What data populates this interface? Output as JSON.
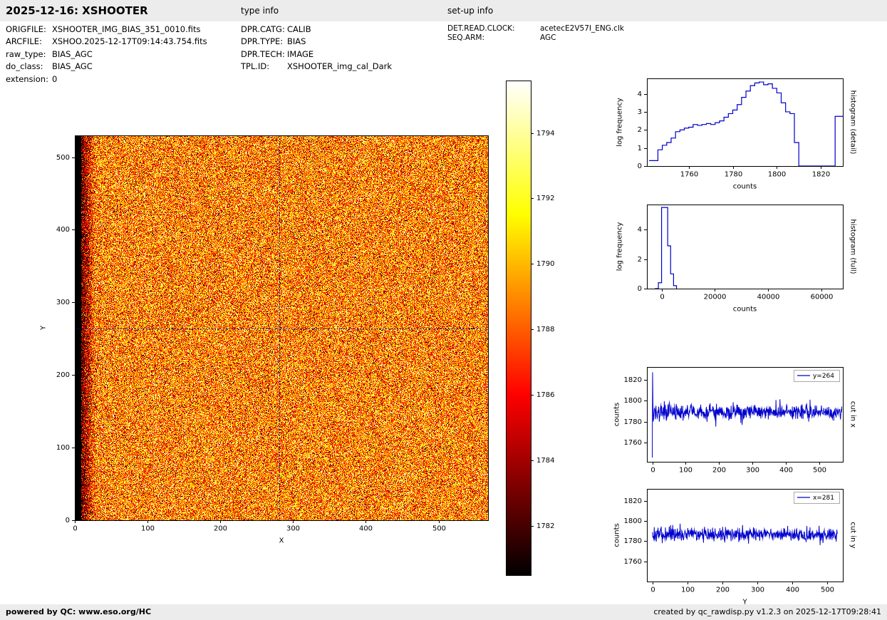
{
  "header": {
    "title": "2025-12-16: XSHOOTER",
    "type_info_label": "type info",
    "setup_info_label": "set-up info"
  },
  "file_info": {
    "rows": [
      {
        "label": "ORIGFILE:",
        "value": "XSHOOTER_IMG_BIAS_351_0010.fits"
      },
      {
        "label": "ARCFILE:",
        "value": "XSHOO.2025-12-17T09:14:43.754.fits"
      },
      {
        "label": "raw_type:",
        "value": "BIAS_AGC"
      },
      {
        "label": "do_class:",
        "value": "BIAS_AGC"
      },
      {
        "label": "extension:",
        "value": "0"
      }
    ]
  },
  "type_info": {
    "rows": [
      {
        "label": "DPR.CATG:",
        "value": "CALIB"
      },
      {
        "label": "DPR.TYPE:",
        "value": "BIAS"
      },
      {
        "label": "DPR.TECH:",
        "value": "IMAGE"
      },
      {
        "label": "TPL.ID:",
        "value": "XSHOOTER_img_cal_Dark"
      }
    ]
  },
  "setup_info": {
    "rows": [
      {
        "label": "DET.READ.CLOCK:",
        "value": "acetecE2V57I_ENG.clk"
      },
      {
        "label": "SEQ.ARM:",
        "value": "AGC"
      }
    ]
  },
  "footer": {
    "left": "powered by QC: www.eso.org/HC",
    "right": "created by qc_rawdisp.py v1.2.3 on 2025-12-17T09:28:41"
  },
  "colors": {
    "plot_line": "#0000cd",
    "crosshair": "#14148c",
    "frame": "#000000",
    "bar_bg": "#ececec"
  },
  "chart_data": [
    {
      "id": "raw_image",
      "type": "heatmap",
      "xlabel": "X",
      "ylabel": "Y",
      "xlim": [
        0,
        568
      ],
      "ylim": [
        0,
        530
      ],
      "xticks": [
        0,
        100,
        200,
        300,
        400,
        500
      ],
      "yticks": [
        0,
        100,
        200,
        300,
        400,
        500
      ],
      "colormap": "hot",
      "vmin": 1780.5,
      "vmax": 1795.6,
      "mean_level": 1789,
      "noise_sigma": 3.2,
      "prescan_columns": 8,
      "edge_dark_until": 28,
      "crosshair": {
        "x": 281,
        "y": 264
      }
    },
    {
      "id": "colorbar",
      "type": "colorbar",
      "colormap": "hot",
      "vmin": 1780.5,
      "vmax": 1795.6,
      "ticks": [
        1782,
        1784,
        1786,
        1788,
        1790,
        1792,
        1794
      ]
    },
    {
      "id": "histogram_detail",
      "type": "line",
      "style": "step",
      "xlabel": "counts",
      "ylabel": "log frequency",
      "side_label": "histogram (detail)",
      "xlim": [
        1741,
        1830
      ],
      "ylim": [
        0,
        4.85
      ],
      "xticks": [
        1760,
        1780,
        1800,
        1820
      ],
      "yticks": [
        0,
        1,
        2,
        3,
        4
      ],
      "x": [
        1742,
        1746,
        1748,
        1750,
        1752,
        1754,
        1756,
        1758,
        1760,
        1762,
        1764,
        1766,
        1768,
        1770,
        1772,
        1774,
        1776,
        1778,
        1780,
        1782,
        1784,
        1786,
        1788,
        1790,
        1792,
        1794,
        1796,
        1798,
        1800,
        1802,
        1804,
        1806,
        1808,
        1810,
        1825,
        1826.5,
        1830
      ],
      "y": [
        0.3,
        0.9,
        1.15,
        1.3,
        1.55,
        1.9,
        2.0,
        2.1,
        2.15,
        2.3,
        2.25,
        2.3,
        2.35,
        2.3,
        2.4,
        2.5,
        2.7,
        2.9,
        3.1,
        3.4,
        3.8,
        4.15,
        4.45,
        4.6,
        4.65,
        4.5,
        4.55,
        4.3,
        4.05,
        3.5,
        3.0,
        2.9,
        1.3,
        0.0,
        0.0,
        2.75,
        2.75
      ]
    },
    {
      "id": "histogram_full",
      "type": "line",
      "style": "step",
      "xlabel": "counts",
      "ylabel": "log frequency",
      "side_label": "histogram (full)",
      "xlim": [
        -5500,
        68000
      ],
      "ylim": [
        0,
        5.7
      ],
      "xticks": [
        0,
        20000,
        40000,
        60000
      ],
      "yticks": [
        0,
        2,
        4
      ],
      "x": [
        -2500,
        -1200,
        0,
        1200,
        2300,
        3400,
        4500,
        5600
      ],
      "y": [
        0,
        0.4,
        5.5,
        5.5,
        2.9,
        1.0,
        0.2,
        0
      ]
    },
    {
      "id": "cut_in_x",
      "type": "line",
      "xlabel": "X",
      "ylabel": "counts",
      "side_label": "cut in x",
      "legend": "y=264",
      "xlim": [
        -16,
        570
      ],
      "ylim": [
        1742,
        1832
      ],
      "xticks": [
        0,
        100,
        200,
        300,
        400,
        500
      ],
      "yticks": [
        1760,
        1780,
        1800,
        1820
      ],
      "baseline": 1789,
      "noise_sigma": 3.5,
      "n_points": 568,
      "start_anomaly": {
        "low": 1746,
        "high": 1827
      }
    },
    {
      "id": "cut_in_y",
      "type": "line",
      "xlabel": "Y",
      "ylabel": "counts",
      "side_label": "cut in y",
      "legend": "x=281",
      "xlim": [
        -16,
        545
      ],
      "ylim": [
        1740,
        1832
      ],
      "xticks": [
        0,
        100,
        200,
        300,
        400,
        500
      ],
      "yticks": [
        1760,
        1780,
        1800,
        1820
      ],
      "baseline": 1786.5,
      "noise_sigma": 3.2,
      "n_points": 530
    }
  ]
}
